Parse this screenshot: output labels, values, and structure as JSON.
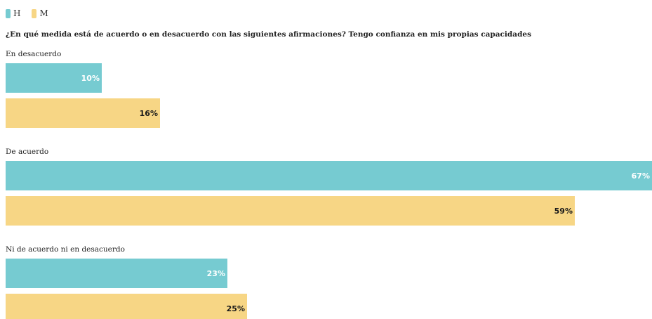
{
  "chart_data": {
    "type": "bar",
    "orientation": "horizontal",
    "title": "¿En qué medida está de acuerdo o en desacuerdo con las siguientes afirmaciones? Tengo confianza en mis propias capacidades",
    "categories": [
      "En desacuerdo",
      "De acuerdo",
      "Ni de acuerdo ni en desacuerdo"
    ],
    "series": [
      {
        "name": "H",
        "values": [
          10,
          67,
          23
        ],
        "color": "#76CBD1",
        "label_color": "#ffffff"
      },
      {
        "name": "M",
        "values": [
          16,
          59,
          25
        ],
        "color": "#F7D685",
        "label_color": "#1a1a1a"
      }
    ],
    "value_suffix": "%",
    "xlim": [
      0,
      67
    ],
    "legend_position": "top-left",
    "grid": false
  }
}
